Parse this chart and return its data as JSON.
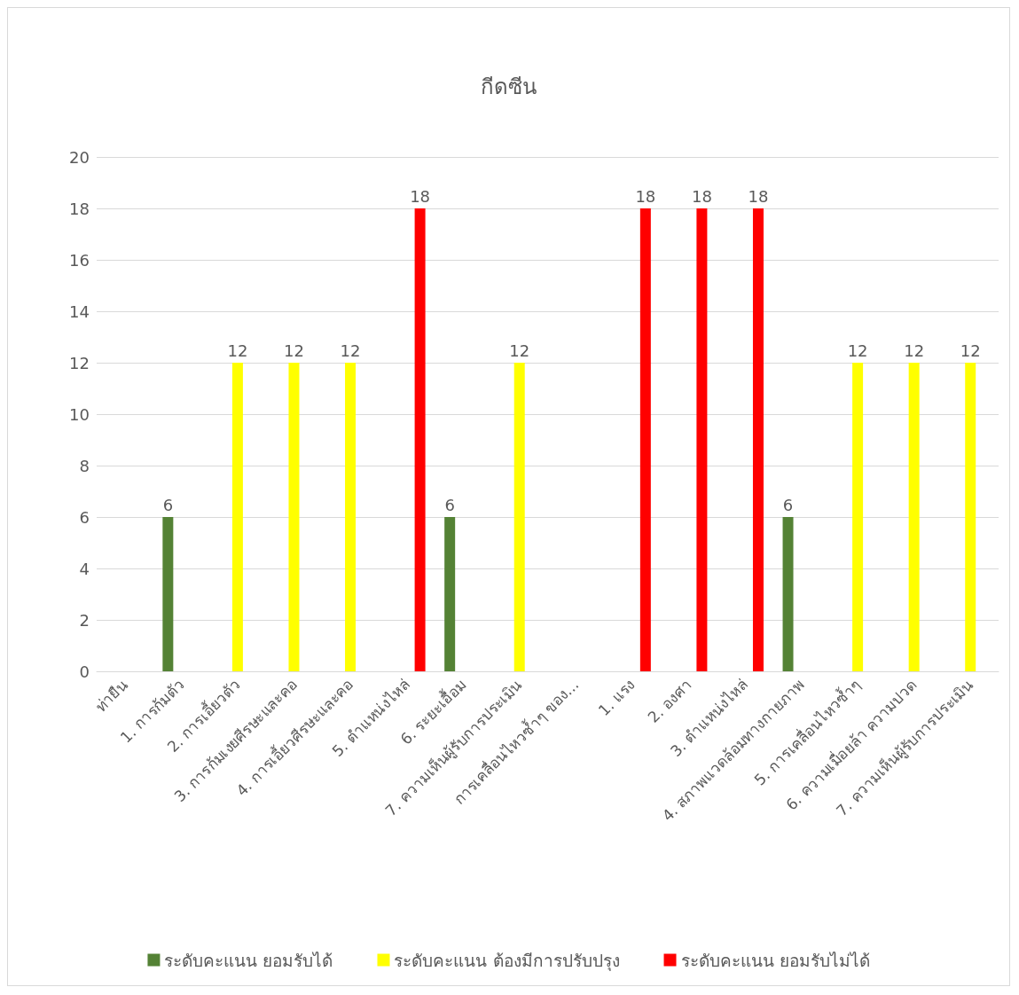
{
  "chart_data": {
    "type": "bar",
    "title": "กีดซีน",
    "categories": [
      "ท่ายืน",
      "1. การก้มตัว",
      "2. การเอี้ยวตัว",
      "3. การก้มเงยศีรษะและคอ",
      "4. การเอี้ยวศีรษะและคอ",
      "5. ตำแหน่งไหล่",
      "6. ระยะเอื้อม",
      "7. ความเห็นผู้รับการประเมิน",
      "การเคลื่อนไหวซ้ำๆ ของ...",
      "1. แรง",
      "2. องศา",
      "3. ตำแหน่งไหล่",
      "4. สภาพแวดล้อมทางกายภาพ",
      "5. การเคลื่อนไหวซ้ำๆ",
      "6. ความเมื่อยล้า ความปวด",
      "7. ความเห็นผู้รับการประเมิน"
    ],
    "series": [
      {
        "name": "ระดับคะแนน ยอมรับได้",
        "color": "#548235",
        "values": [
          null,
          6,
          null,
          null,
          null,
          null,
          6,
          null,
          null,
          null,
          null,
          null,
          6,
          null,
          null,
          null
        ]
      },
      {
        "name": "ระดับคะแนน ต้องมีการปรับปรุง",
        "color": "#ffff00",
        "values": [
          null,
          null,
          12,
          12,
          12,
          null,
          null,
          12,
          null,
          null,
          null,
          null,
          null,
          12,
          12,
          12
        ]
      },
      {
        "name": "ระดับคะแนน ยอมรับไม่ได้",
        "color": "#ff0000",
        "values": [
          null,
          null,
          null,
          null,
          null,
          18,
          null,
          null,
          null,
          18,
          18,
          18,
          null,
          null,
          null,
          null
        ]
      }
    ],
    "ylim": [
      0,
      20
    ],
    "yticks": [
      0,
      2,
      4,
      6,
      8,
      10,
      12,
      14,
      16,
      18,
      20
    ],
    "grid": "y",
    "legend": "bottom",
    "data_labels": true
  }
}
